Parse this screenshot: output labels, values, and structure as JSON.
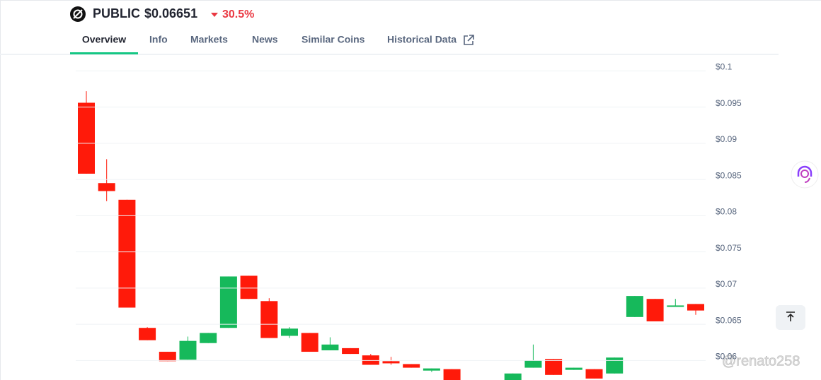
{
  "header": {
    "name": "PUBLIC",
    "price": "$0.06651",
    "change": "30.5%",
    "tabs": [
      "Overview",
      "Info",
      "Markets",
      "News",
      "Similar Coins",
      "Historical Data"
    ]
  },
  "watermark": "@renato258",
  "chart_data": {
    "type": "candlestick",
    "up_color": "#16b95b",
    "down_color": "#ff1a0a",
    "grid": true,
    "ylim": [
      0.0573,
      0.1015
    ],
    "yticks": [
      {
        "value": 0.06,
        "label": "$0.06"
      },
      {
        "value": 0.065,
        "label": "$0.065"
      },
      {
        "value": 0.07,
        "label": "$0.07"
      },
      {
        "value": 0.075,
        "label": "$0.075"
      },
      {
        "value": 0.08,
        "label": "$0.08"
      },
      {
        "value": 0.085,
        "label": "$0.085"
      },
      {
        "value": 0.09,
        "label": "$0.09"
      },
      {
        "value": 0.095,
        "label": "$0.095"
      },
      {
        "value": 0.1,
        "label": "$0.1"
      }
    ],
    "open": [
      0.0956,
      0.0845,
      0.0822,
      0.0645,
      0.0612,
      0.0601,
      0.0624,
      0.0645,
      0.0717,
      0.0682,
      0.0634,
      0.0638,
      0.0614,
      0.0617,
      0.0607,
      0.0599,
      0.0595,
      0.0586,
      0.0588,
      null,
      null,
      0.0569,
      0.059,
      0.0602,
      0.0587,
      0.0588,
      0.0582,
      0.066,
      0.0685,
      0.0674,
      0.0678
    ],
    "high": [
      0.0972,
      0.0878,
      0.0822,
      0.0646,
      0.0612,
      0.0633,
      0.0638,
      0.0716,
      0.0717,
      0.0686,
      0.0646,
      0.0638,
      0.0632,
      0.0617,
      0.0609,
      0.0605,
      0.0595,
      0.0589,
      0.0588,
      null,
      null,
      0.0582,
      0.0622,
      0.0602,
      0.059,
      0.0588,
      0.0604,
      0.0689,
      0.0685,
      0.0685,
      0.0678
    ],
    "low": [
      0.0858,
      0.082,
      0.0673,
      0.0628,
      0.0599,
      0.0601,
      0.0624,
      0.0645,
      0.0685,
      0.0631,
      0.0631,
      0.0612,
      0.0614,
      0.0609,
      0.0594,
      0.0594,
      0.059,
      0.0584,
      0.057,
      null,
      null,
      0.0569,
      0.059,
      0.058,
      0.0587,
      0.0575,
      0.0582,
      0.066,
      0.0654,
      0.0674,
      0.0663
    ],
    "close": [
      0.0858,
      0.0834,
      0.0673,
      0.0628,
      0.0599,
      0.0627,
      0.0638,
      0.0716,
      0.0685,
      0.0631,
      0.0644,
      0.0612,
      0.0622,
      0.0609,
      0.0594,
      0.0596,
      0.059,
      0.0589,
      0.057,
      null,
      null,
      0.0582,
      0.06,
      0.058,
      0.059,
      0.0575,
      0.0604,
      0.0689,
      0.0654,
      0.0676,
      0.0669
    ]
  }
}
